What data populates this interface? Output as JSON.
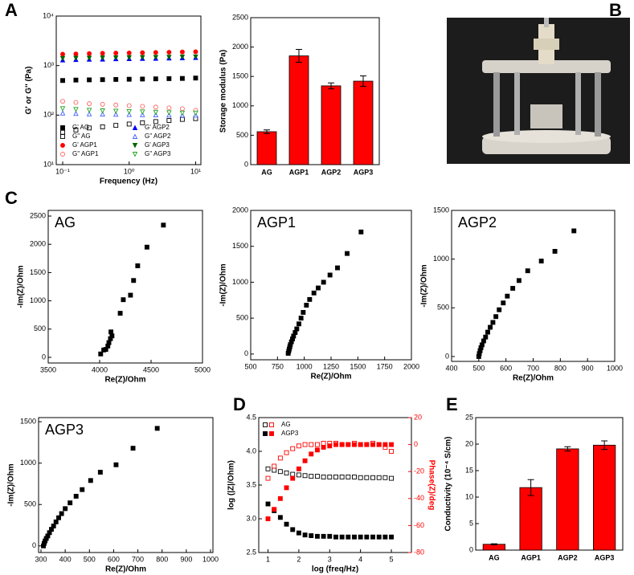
{
  "panel_labels": [
    "A",
    "B",
    "C",
    "D",
    "E"
  ],
  "chart_data": [
    {
      "type": "scatter",
      "xlabel": "Frequency (Hz)",
      "ylabel": "G' or G'' (Pa)",
      "xlog": true,
      "ylog": true,
      "xlim": [
        0.08,
        12
      ],
      "ylim": [
        10,
        10000
      ],
      "xticks": [
        {
          "value": 0.1,
          "label": "10⁻¹"
        },
        {
          "value": 1,
          "label": "10⁰"
        },
        {
          "value": 10,
          "label": "10¹"
        }
      ],
      "yticks": [
        {
          "value": 10,
          "label": "10¹"
        },
        {
          "value": 100,
          "label": "10²"
        },
        {
          "value": 1000,
          "label": "10³"
        },
        {
          "value": 10000,
          "label": "10⁴"
        }
      ],
      "legend": "lower left",
      "legend_cols": 2,
      "x": [
        0.1,
        0.158,
        0.251,
        0.398,
        0.631,
        1,
        1.585,
        2.512,
        3.981,
        6.31,
        10
      ],
      "series": [
        {
          "name": "G' AG",
          "color": "#000000",
          "marker": "square",
          "filled": true,
          "values": [
            500,
            510,
            515,
            520,
            525,
            530,
            535,
            540,
            545,
            550,
            560
          ]
        },
        {
          "name": "G'' AG",
          "color": "#000000",
          "marker": "square",
          "filled": false,
          "values": [
            45,
            50,
            55,
            58,
            62,
            66,
            70,
            74,
            78,
            82,
            85
          ]
        },
        {
          "name": "G' AGP1",
          "color": "#ff0000",
          "marker": "circle",
          "filled": true,
          "values": [
            1700,
            1720,
            1750,
            1770,
            1790,
            1800,
            1820,
            1840,
            1860,
            1880,
            1900
          ]
        },
        {
          "name": "G'' AGP1",
          "color": "#ff6060",
          "marker": "circle",
          "filled": false,
          "values": [
            190,
            180,
            170,
            165,
            160,
            155,
            150,
            145,
            140,
            135,
            125
          ]
        },
        {
          "name": "G' AGP2",
          "color": "#0000ff",
          "marker": "triangle",
          "filled": true,
          "values": [
            1300,
            1320,
            1340,
            1350,
            1370,
            1380,
            1390,
            1400,
            1420,
            1430,
            1450
          ]
        },
        {
          "name": "G'' AGP2",
          "color": "#4060ff",
          "marker": "triangle",
          "filled": false,
          "values": [
            110,
            108,
            106,
            105,
            104,
            103,
            102,
            101,
            100,
            100,
            100
          ]
        },
        {
          "name": "G' AGP3",
          "color": "#006400",
          "marker": "triangle-down",
          "filled": true,
          "values": [
            1400,
            1410,
            1420,
            1430,
            1440,
            1450,
            1460,
            1470,
            1480,
            1490,
            1500
          ]
        },
        {
          "name": "G'' AGP3",
          "color": "#20a020",
          "marker": "triangle-down",
          "filled": false,
          "values": [
            135,
            130,
            125,
            122,
            120,
            118,
            116,
            114,
            112,
            110,
            110
          ]
        }
      ]
    },
    {
      "type": "bar",
      "ylabel": "Storage modulus (Pa)",
      "categories": [
        "AG",
        "AGP1",
        "AGP2",
        "AGP3"
      ],
      "values": [
        560,
        1850,
        1340,
        1420
      ],
      "errors": [
        30,
        110,
        50,
        90
      ],
      "color": "#ff0000",
      "ylim": [
        0,
        2500
      ],
      "yticks": [
        0,
        500,
        1000,
        1500,
        2000,
        2500
      ]
    },
    {
      "type": "scatter",
      "annotation": "AG",
      "xlabel": "Re(Z)/Ohm",
      "ylabel": "-Im(Z)/Ohm",
      "color": "#000000",
      "marker": "square",
      "filled": true,
      "xlim": [
        3500,
        5000
      ],
      "ylim": [
        -100,
        2600
      ],
      "xticks": [
        3500,
        4000,
        4500,
        5000
      ],
      "yticks": [
        0,
        500,
        1000,
        1500,
        2000,
        2500
      ],
      "x": [
        4010,
        4040,
        4060,
        4080,
        4090,
        4105,
        4110,
        4120,
        4200,
        4230,
        4300,
        4330,
        4370,
        4460,
        4620
      ],
      "values": [
        60,
        130,
        140,
        200,
        260,
        330,
        450,
        380,
        780,
        1020,
        1100,
        1360,
        1620,
        1950,
        2340
      ]
    },
    {
      "type": "scatter",
      "annotation": "AGP1",
      "xlabel": "Re(Z)/Ohm",
      "ylabel": "-Im(Z)/Ohm",
      "color": "#000000",
      "marker": "square",
      "filled": true,
      "xlim": [
        500,
        2000
      ],
      "ylim": [
        -80,
        2000
      ],
      "xticks": [
        500,
        750,
        1000,
        1250,
        1500,
        1750,
        2000
      ],
      "yticks": [
        0,
        500,
        1000,
        1500,
        2000
      ],
      "x": [
        850,
        855,
        860,
        865,
        870,
        880,
        890,
        900,
        915,
        930,
        950,
        970,
        990,
        1020,
        1050,
        1090,
        1130,
        1180,
        1240,
        1310,
        1400,
        1530
      ],
      "values": [
        10,
        40,
        70,
        100,
        130,
        170,
        210,
        250,
        300,
        350,
        420,
        500,
        580,
        680,
        760,
        850,
        920,
        1000,
        1100,
        1200,
        1400,
        1700
      ]
    },
    {
      "type": "scatter",
      "annotation": "AGP2",
      "xlabel": "Re(Z)/Ohm",
      "ylabel": "-Im(Z)/Ohm",
      "color": "#000000",
      "marker": "square",
      "filled": true,
      "xlim": [
        400,
        1000
      ],
      "ylim": [
        -50,
        1500
      ],
      "xticks": [
        400,
        500,
        600,
        700,
        800,
        900,
        1000
      ],
      "yticks": [
        0,
        500,
        1000,
        1500
      ],
      "x": [
        500,
        502,
        505,
        508,
        512,
        518,
        525,
        533,
        542,
        552,
        563,
        575,
        590,
        605,
        625,
        648,
        680,
        730,
        780,
        850
      ],
      "values": [
        0,
        30,
        60,
        90,
        120,
        160,
        200,
        250,
        300,
        350,
        410,
        480,
        550,
        620,
        700,
        780,
        880,
        980,
        1080,
        1290
      ]
    },
    {
      "type": "scatter",
      "annotation": "AGP3",
      "xlabel": "Re(Z)/Ohm",
      "ylabel": "-Im(Z)/Ohm",
      "color": "#000000",
      "marker": "square",
      "filled": true,
      "xlim": [
        290,
        1010
      ],
      "ylim": [
        -80,
        1550
      ],
      "xticks": [
        300,
        400,
        500,
        600,
        700,
        800,
        900,
        1000
      ],
      "yticks": [
        0,
        500,
        1000,
        1500
      ],
      "x": [
        310,
        313,
        317,
        322,
        328,
        335,
        343,
        352,
        362,
        373,
        385,
        400,
        420,
        445,
        470,
        505,
        545,
        610,
        680,
        780
      ],
      "values": [
        0,
        30,
        60,
        90,
        120,
        160,
        200,
        240,
        290,
        340,
        390,
        450,
        520,
        600,
        680,
        790,
        890,
        980,
        1180,
        1420
      ]
    },
    {
      "type": "scatter",
      "xlabel": "log (freq/Hz)",
      "ylabel": "log (|Z|/Ohm)",
      "y2label": "Phase(Z)/deg",
      "y2color": "#ff0000",
      "xlim": [
        0.7,
        5.65
      ],
      "ylim": [
        2.5,
        4.5
      ],
      "y2lim": [
        -80,
        20
      ],
      "xticks": [
        1,
        2,
        3,
        4,
        5
      ],
      "yticks": [
        2.5,
        {
          "value": 3,
          "label": "3.0"
        },
        3.5,
        {
          "value": 4,
          "label": "4.0"
        },
        4.5
      ],
      "y2ticks": [
        -80,
        -60,
        -40,
        -20,
        0,
        20
      ],
      "legend": "upper left",
      "x": [
        1,
        1.2,
        1.4,
        1.6,
        1.8,
        2,
        2.2,
        2.4,
        2.6,
        2.8,
        3,
        3.2,
        3.4,
        3.6,
        3.8,
        4,
        4.2,
        4.4,
        4.6,
        4.8,
        5
      ],
      "series": [
        {
          "name": "AG",
          "color": "#000000",
          "marker": "square",
          "filled": false,
          "values": [
            3.74,
            3.72,
            3.7,
            3.68,
            3.66,
            3.65,
            3.64,
            3.63,
            3.63,
            3.62,
            3.62,
            3.62,
            3.62,
            3.62,
            3.62,
            3.61,
            3.61,
            3.61,
            3.61,
            3.61,
            3.6
          ]
        },
        {
          "name": "AGP3",
          "color": "#000000",
          "marker": "square",
          "filled": true,
          "values": [
            3.22,
            3.12,
            3.02,
            2.92,
            2.84,
            2.79,
            2.76,
            2.75,
            2.74,
            2.74,
            2.74,
            2.73,
            2.73,
            2.73,
            2.73,
            2.73,
            2.73,
            2.73,
            2.73,
            2.73,
            2.73
          ]
        },
        {
          "name": "AG",
          "color": "#ff0000",
          "marker": "square",
          "filled": false,
          "axis": "y2",
          "values": [
            -25,
            -16,
            -10,
            -6,
            -3,
            -1,
            0,
            0,
            0,
            1,
            1,
            1,
            0,
            0,
            1,
            0,
            0,
            1,
            0,
            -2,
            -5
          ]
        },
        {
          "name": "AGP3",
          "color": "#ff0000",
          "marker": "square",
          "filled": true,
          "axis": "y2",
          "values": [
            -55,
            -48,
            -40,
            -32,
            -25,
            -18,
            -12,
            -7,
            -4,
            -2,
            -1,
            0,
            0,
            0,
            0,
            0,
            0,
            0,
            0,
            0,
            0
          ]
        }
      ]
    },
    {
      "type": "bar",
      "ylabel": "Conductivity (10⁻⁴ S/cm)",
      "categories": [
        "AG",
        "AGP1",
        "AGP2",
        "AGP3"
      ],
      "values": [
        1.1,
        11.8,
        19.1,
        19.8
      ],
      "errors": [
        0.1,
        1.5,
        0.4,
        0.8
      ],
      "color": "#ff0000",
      "ylim": [
        0,
        25
      ],
      "yticks": [
        0,
        5,
        10,
        15,
        20,
        25
      ]
    }
  ]
}
